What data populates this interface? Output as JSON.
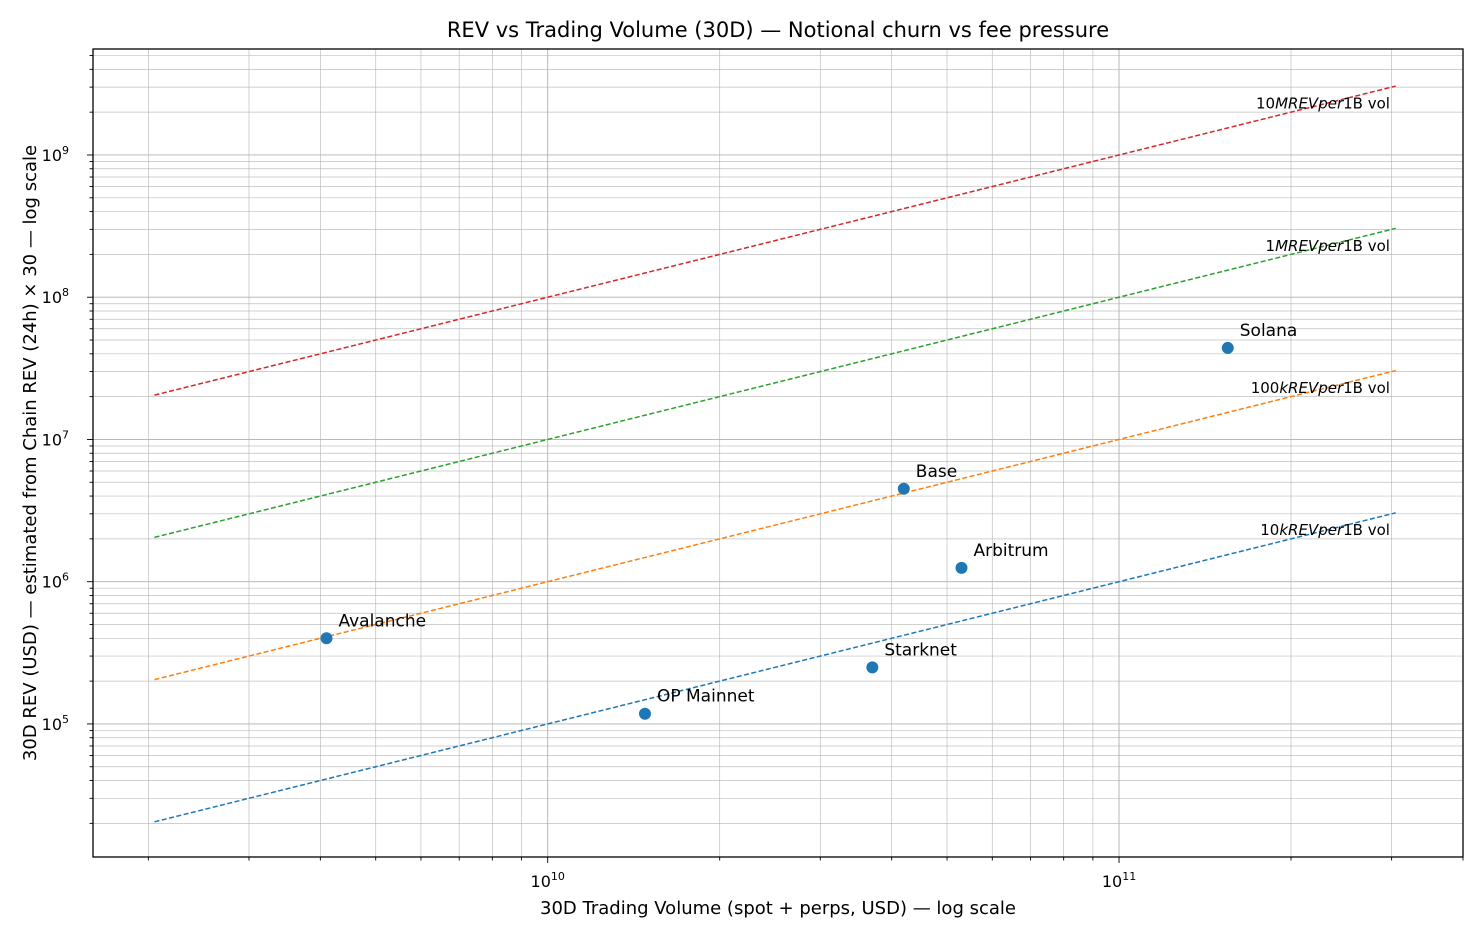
{
  "chart_data": {
    "type": "scatter",
    "title": "REV vs Trading Volume (30D) — Notional churn vs fee pressure",
    "xlabel": "30D Trading Volume (spot + perps, USD) — log scale",
    "ylabel": "30D REV (USD) — estimated from Chain REV (24h) × 30 — log scale",
    "xscale": "log",
    "yscale": "log",
    "xlim": [
      1600000000.0,
      400000000000.0
    ],
    "ylim": [
      11600.0,
      5560000000.0
    ],
    "grid": "major and minor",
    "x_ticks": [
      {
        "value": 10000000000.0,
        "base": "10",
        "exp": "10"
      },
      {
        "value": 100000000000.0,
        "base": "10",
        "exp": "11"
      }
    ],
    "y_ticks": [
      {
        "value": 100000.0,
        "base": "10",
        "exp": "5"
      },
      {
        "value": 1000000.0,
        "base": "10",
        "exp": "6"
      },
      {
        "value": 10000000.0,
        "base": "10",
        "exp": "7"
      },
      {
        "value": 100000000.0,
        "base": "10",
        "exp": "8"
      },
      {
        "value": 1000000000.0,
        "base": "10",
        "exp": "9"
      }
    ],
    "points": [
      {
        "label": "Solana",
        "x": 155000000000.0,
        "y": 44000000.0
      },
      {
        "label": "Base",
        "x": 42000000000.0,
        "y": 4500000.0
      },
      {
        "label": "Arbitrum",
        "x": 53000000000.0,
        "y": 1250000.0
      },
      {
        "label": "Avalanche",
        "x": 4100000000.0,
        "y": 400000.0
      },
      {
        "label": "Starknet",
        "x": 37000000000.0,
        "y": 250000.0
      },
      {
        "label": "OP Mainnet",
        "x": 14800000000.0,
        "y": 118000.0
      }
    ],
    "point_color": "#1f77b4",
    "reference_lines": [
      {
        "ratio": 0.01,
        "color": "#d62728",
        "label": {
          "num": "10",
          "italic": "MREVper",
          "tail": "1B vol"
        }
      },
      {
        "ratio": 0.001,
        "color": "#2ca02c",
        "label": {
          "num": "1",
          "italic": "MREVper",
          "tail": "1B vol"
        }
      },
      {
        "ratio": 0.0001,
        "color": "#ff7f0e",
        "label": {
          "num": "100",
          "italic": "kREVper",
          "tail": "1B vol"
        }
      },
      {
        "ratio": 1e-05,
        "color": "#1f77b4",
        "label": {
          "num": "10",
          "italic": "kREVper",
          "tail": "1B vol"
        }
      }
    ],
    "reference_x_range": [
      2050000000.0,
      305000000000.0
    ]
  }
}
